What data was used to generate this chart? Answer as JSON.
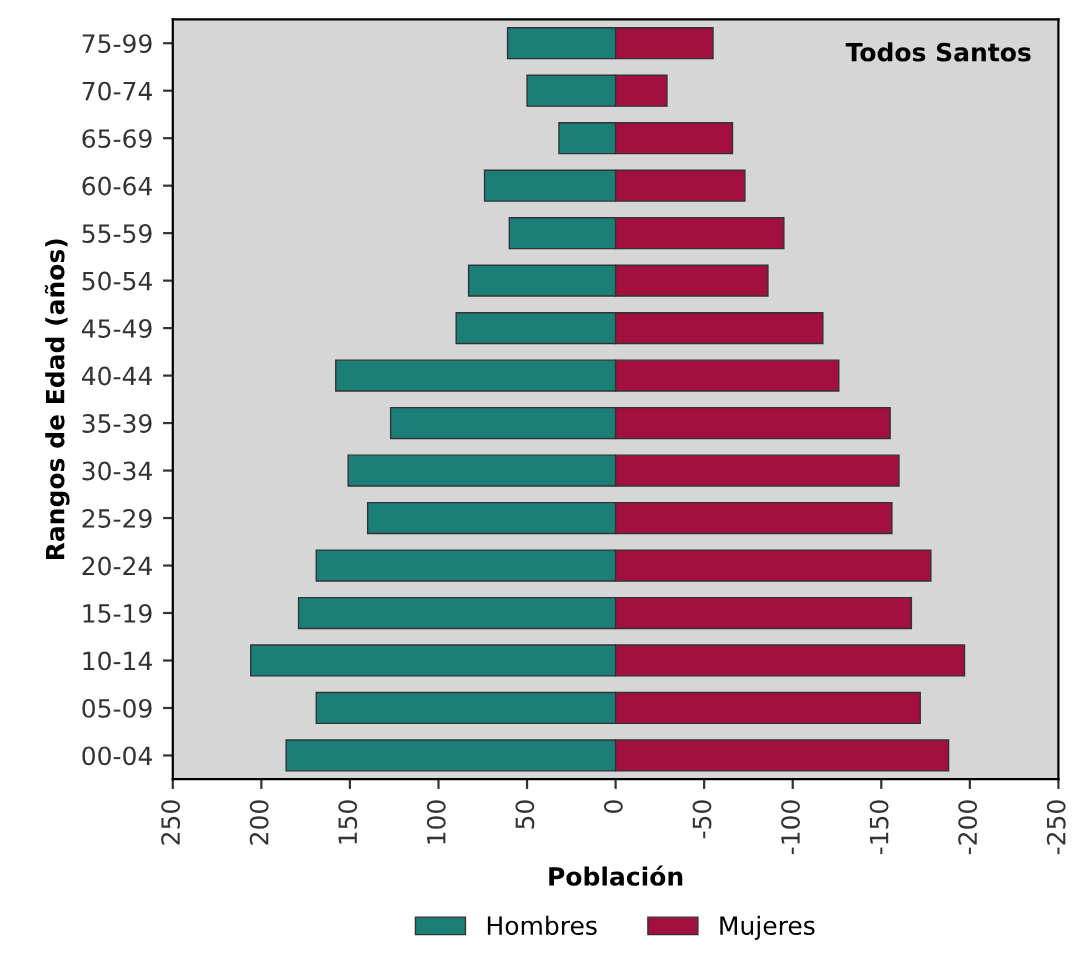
{
  "chart_data": {
    "type": "bar",
    "orientation": "horizontal",
    "stacked": true,
    "categories": [
      "75-99",
      "70-74",
      "65-69",
      "60-64",
      "55-59",
      "50-54",
      "45-49",
      "40-44",
      "35-39",
      "30-34",
      "25-29",
      "20-24",
      "15-19",
      "10-14",
      "05-09",
      "00-04"
    ],
    "series": [
      {
        "name": "Hombres",
        "color": "#1b7f78",
        "values": [
          61,
          50,
          32,
          74,
          60,
          83,
          90,
          158,
          127,
          151,
          140,
          169,
          179,
          206,
          169,
          186
        ]
      },
      {
        "name": "Mujeres",
        "color": "#a3103f",
        "values": [
          -55,
          -29,
          -66,
          -73,
          -95,
          -86,
          -117,
          -126,
          -155,
          -160,
          -156,
          -178,
          -167,
          -197,
          -172,
          -188
        ]
      }
    ],
    "xlim": [
      250,
      -250
    ],
    "xticks": [
      250,
      200,
      150,
      100,
      50,
      0,
      -50,
      -100,
      -150,
      -200,
      -250
    ],
    "xlabel": "Población",
    "ylabel": "Rangos de Edad (años)",
    "annotations": [
      "Todos Santos"
    ],
    "legend": "bottom",
    "grid": false
  }
}
